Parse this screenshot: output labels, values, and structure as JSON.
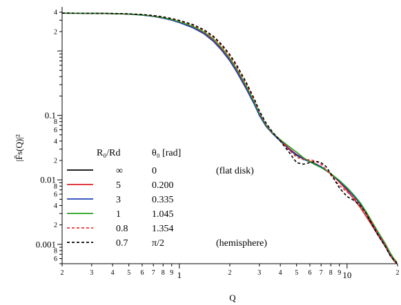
{
  "chart_data": {
    "type": "line",
    "xlabel": "Q",
    "ylabel": "|F̃s(Q)|²",
    "xscale": "log",
    "yscale": "log",
    "xlim": [
      0.2,
      20
    ],
    "ylim": [
      0.0005,
      4.6
    ],
    "grid": false,
    "legend_position": "bottom-left",
    "legend_headers": {
      "ratio": "R₀/Rd",
      "theta": "θ₀ [rad]"
    },
    "x_major_tick_labels": [
      {
        "value": 1,
        "label": "1"
      },
      {
        "value": 10,
        "label": "10"
      }
    ],
    "x_minor_tick_labels": [
      {
        "value": 0.2,
        "label": "2"
      },
      {
        "value": 0.3,
        "label": "3"
      },
      {
        "value": 0.4,
        "label": "4"
      },
      {
        "value": 0.5,
        "label": "5"
      },
      {
        "value": 0.6,
        "label": "6"
      },
      {
        "value": 0.7,
        "label": "7"
      },
      {
        "value": 0.8,
        "label": "8"
      },
      {
        "value": 0.9,
        "label": "9"
      },
      {
        "value": 2,
        "label": "2"
      },
      {
        "value": 3,
        "label": "3"
      },
      {
        "value": 4,
        "label": "4"
      },
      {
        "value": 5,
        "label": "5"
      },
      {
        "value": 6,
        "label": "6"
      },
      {
        "value": 7,
        "label": "7"
      },
      {
        "value": 8,
        "label": "8"
      },
      {
        "value": 9,
        "label": "9"
      },
      {
        "value": 20,
        "label": "2"
      }
    ],
    "y_major_tick_labels": [
      {
        "value": 0.1,
        "label": "0.1"
      },
      {
        "value": 0.01,
        "label": "0.01"
      },
      {
        "value": 0.001,
        "label": "0.001"
      }
    ],
    "y_minor_tick_labels": [
      {
        "value": 4,
        "label": "4"
      },
      {
        "value": 2,
        "label": "2"
      },
      {
        "value": 0.08,
        "label": "8"
      },
      {
        "value": 0.06,
        "label": "6"
      },
      {
        "value": 0.04,
        "label": "4"
      },
      {
        "value": 0.02,
        "label": "2"
      },
      {
        "value": 0.008,
        "label": "8"
      },
      {
        "value": 0.006,
        "label": "6"
      },
      {
        "value": 0.004,
        "label": "4"
      },
      {
        "value": 0.002,
        "label": "2"
      },
      {
        "value": 0.0008,
        "label": "8"
      },
      {
        "value": 0.0006,
        "label": "6"
      }
    ],
    "series": [
      {
        "ratio_label": "∞",
        "theta_label": "0",
        "note": "(flat disk)",
        "color": "#000000",
        "dash": "solid",
        "points": [
          [
            0.2,
            3.85
          ],
          [
            0.3,
            3.83
          ],
          [
            0.4,
            3.8
          ],
          [
            0.5,
            3.74
          ],
          [
            0.6,
            3.62
          ],
          [
            0.7,
            3.45
          ],
          [
            0.8,
            3.25
          ],
          [
            0.9,
            3.03
          ],
          [
            1.0,
            2.8
          ],
          [
            1.2,
            2.35
          ],
          [
            1.4,
            1.9
          ],
          [
            1.6,
            1.45
          ],
          [
            1.8,
            1.05
          ],
          [
            2.0,
            0.72
          ],
          [
            2.2,
            0.48
          ],
          [
            2.5,
            0.27
          ],
          [
            2.8,
            0.15
          ],
          [
            3.0,
            0.1
          ],
          [
            3.3,
            0.067
          ],
          [
            3.6,
            0.052
          ],
          [
            4.0,
            0.04
          ],
          [
            4.5,
            0.03
          ],
          [
            5.0,
            0.024
          ],
          [
            5.5,
            0.021
          ],
          [
            6.0,
            0.019
          ],
          [
            6.5,
            0.0175
          ],
          [
            7.0,
            0.016
          ],
          [
            8.0,
            0.0125
          ],
          [
            9.0,
            0.0095
          ],
          [
            10.0,
            0.0072
          ],
          [
            11.0,
            0.0055
          ],
          [
            12.0,
            0.0042
          ],
          [
            13.0,
            0.003
          ],
          [
            14.0,
            0.0021
          ],
          [
            15.0,
            0.0016
          ],
          [
            17.0,
            0.00095
          ],
          [
            18.0,
            0.0007
          ],
          [
            19.0,
            0.00058
          ],
          [
            19.8,
            0.00052
          ]
        ]
      },
      {
        "ratio_label": "5",
        "theta_label": "0.200",
        "note": "",
        "color": "#e02020",
        "dash": "solid",
        "points": [
          [
            0.2,
            3.85
          ],
          [
            0.3,
            3.83
          ],
          [
            0.4,
            3.8
          ],
          [
            0.5,
            3.74
          ],
          [
            0.6,
            3.62
          ],
          [
            0.7,
            3.45
          ],
          [
            0.8,
            3.25
          ],
          [
            0.9,
            3.03
          ],
          [
            1.0,
            2.8
          ],
          [
            1.2,
            2.34
          ],
          [
            1.4,
            1.9
          ],
          [
            1.6,
            1.45
          ],
          [
            1.8,
            1.05
          ],
          [
            2.0,
            0.73
          ],
          [
            2.2,
            0.49
          ],
          [
            2.5,
            0.275
          ],
          [
            2.8,
            0.155
          ],
          [
            3.0,
            0.105
          ],
          [
            3.3,
            0.069
          ],
          [
            3.6,
            0.053
          ],
          [
            4.0,
            0.041
          ],
          [
            4.5,
            0.031
          ],
          [
            5.0,
            0.025
          ],
          [
            5.5,
            0.0215
          ],
          [
            6.0,
            0.0195
          ],
          [
            6.5,
            0.0178
          ],
          [
            7.0,
            0.016
          ],
          [
            8.0,
            0.0124
          ],
          [
            9.0,
            0.0092
          ],
          [
            10.0,
            0.0068
          ],
          [
            11.0,
            0.005
          ],
          [
            12.0,
            0.0037
          ],
          [
            13.0,
            0.0027
          ],
          [
            14.0,
            0.002
          ],
          [
            15.0,
            0.0015
          ],
          [
            17.0,
            0.0009
          ],
          [
            18.0,
            0.00068
          ],
          [
            19.0,
            0.00056
          ],
          [
            19.8,
            0.0005
          ]
        ]
      },
      {
        "ratio_label": "3",
        "theta_label": "0.335",
        "note": "",
        "color": "#1f3fb0",
        "dash": "solid",
        "points": [
          [
            0.2,
            3.85
          ],
          [
            0.3,
            3.83
          ],
          [
            0.4,
            3.8
          ],
          [
            0.5,
            3.73
          ],
          [
            0.6,
            3.6
          ],
          [
            0.7,
            3.43
          ],
          [
            0.8,
            3.22
          ],
          [
            0.9,
            3.0
          ],
          [
            1.0,
            2.76
          ],
          [
            1.2,
            2.3
          ],
          [
            1.4,
            1.85
          ],
          [
            1.6,
            1.4
          ],
          [
            1.8,
            1.0
          ],
          [
            2.0,
            0.7
          ],
          [
            2.2,
            0.47
          ],
          [
            2.5,
            0.26
          ],
          [
            2.8,
            0.148
          ],
          [
            3.0,
            0.1
          ],
          [
            3.3,
            0.067
          ],
          [
            3.6,
            0.052
          ],
          [
            4.0,
            0.04
          ],
          [
            4.5,
            0.03
          ],
          [
            5.0,
            0.0245
          ],
          [
            5.5,
            0.021
          ],
          [
            6.0,
            0.019
          ],
          [
            6.5,
            0.0175
          ],
          [
            7.0,
            0.016
          ],
          [
            8.0,
            0.0125
          ],
          [
            9.0,
            0.0095
          ],
          [
            10.0,
            0.0072
          ],
          [
            11.0,
            0.0055
          ],
          [
            12.0,
            0.0042
          ],
          [
            13.0,
            0.003
          ],
          [
            14.0,
            0.0022
          ],
          [
            15.0,
            0.0016
          ],
          [
            17.0,
            0.00095
          ],
          [
            18.0,
            0.0007
          ],
          [
            19.0,
            0.00058
          ],
          [
            19.8,
            0.00052
          ]
        ]
      },
      {
        "ratio_label": "1",
        "theta_label": "1.045",
        "note": "",
        "color": "#20a020",
        "dash": "solid",
        "points": [
          [
            0.2,
            3.85
          ],
          [
            0.3,
            3.83
          ],
          [
            0.4,
            3.8
          ],
          [
            0.5,
            3.74
          ],
          [
            0.6,
            3.63
          ],
          [
            0.7,
            3.47
          ],
          [
            0.8,
            3.28
          ],
          [
            0.9,
            3.07
          ],
          [
            1.0,
            2.85
          ],
          [
            1.2,
            2.42
          ],
          [
            1.4,
            1.98
          ],
          [
            1.6,
            1.52
          ],
          [
            1.8,
            1.1
          ],
          [
            2.0,
            0.77
          ],
          [
            2.2,
            0.52
          ],
          [
            2.5,
            0.29
          ],
          [
            2.8,
            0.16
          ],
          [
            3.0,
            0.108
          ],
          [
            3.3,
            0.07
          ],
          [
            3.6,
            0.053
          ],
          [
            4.0,
            0.042
          ],
          [
            4.5,
            0.033
          ],
          [
            5.0,
            0.027
          ],
          [
            5.5,
            0.022
          ],
          [
            6.0,
            0.019
          ],
          [
            6.5,
            0.017
          ],
          [
            7.0,
            0.0155
          ],
          [
            8.0,
            0.0125
          ],
          [
            9.0,
            0.0098
          ],
          [
            10.0,
            0.0076
          ],
          [
            11.0,
            0.0058
          ],
          [
            12.0,
            0.0044
          ],
          [
            13.0,
            0.0032
          ],
          [
            14.0,
            0.0023
          ],
          [
            15.0,
            0.0017
          ],
          [
            17.0,
            0.001
          ],
          [
            18.0,
            0.00075
          ],
          [
            19.0,
            0.0006
          ],
          [
            19.8,
            0.00053
          ]
        ]
      },
      {
        "ratio_label": "0.8",
        "theta_label": "1.354",
        "note": "",
        "color": "#e83030",
        "dash": "dashed",
        "points": [
          [
            0.2,
            3.85
          ],
          [
            0.3,
            3.84
          ],
          [
            0.4,
            3.81
          ],
          [
            0.5,
            3.76
          ],
          [
            0.6,
            3.66
          ],
          [
            0.7,
            3.52
          ],
          [
            0.8,
            3.35
          ],
          [
            0.9,
            3.15
          ],
          [
            1.0,
            2.93
          ],
          [
            1.2,
            2.52
          ],
          [
            1.4,
            2.08
          ],
          [
            1.6,
            1.62
          ],
          [
            1.8,
            1.18
          ],
          [
            2.0,
            0.83
          ],
          [
            2.2,
            0.56
          ],
          [
            2.5,
            0.31
          ],
          [
            2.8,
            0.17
          ],
          [
            3.0,
            0.112
          ],
          [
            3.3,
            0.072
          ],
          [
            3.6,
            0.054
          ],
          [
            4.0,
            0.041
          ],
          [
            4.5,
            0.029
          ],
          [
            5.0,
            0.0225
          ],
          [
            5.5,
            0.0205
          ],
          [
            6.0,
            0.0205
          ],
          [
            6.5,
            0.0195
          ],
          [
            7.0,
            0.0175
          ],
          [
            8.0,
            0.0118
          ],
          [
            9.0,
            0.0082
          ],
          [
            10.0,
            0.0065
          ],
          [
            11.0,
            0.0052
          ],
          [
            12.0,
            0.004
          ],
          [
            13.0,
            0.003
          ],
          [
            14.0,
            0.0022
          ],
          [
            15.0,
            0.0016
          ],
          [
            17.0,
            0.00095
          ],
          [
            18.0,
            0.0007
          ],
          [
            19.0,
            0.00058
          ],
          [
            19.8,
            0.00052
          ]
        ]
      },
      {
        "ratio_label": "0.7",
        "theta_label": "π/2",
        "note": "(hemisphere)",
        "color": "#000000",
        "dash": "dashed",
        "points": [
          [
            0.2,
            3.85
          ],
          [
            0.3,
            3.84
          ],
          [
            0.4,
            3.82
          ],
          [
            0.5,
            3.77
          ],
          [
            0.6,
            3.68
          ],
          [
            0.7,
            3.55
          ],
          [
            0.8,
            3.38
          ],
          [
            0.9,
            3.19
          ],
          [
            1.0,
            2.98
          ],
          [
            1.2,
            2.58
          ],
          [
            1.4,
            2.14
          ],
          [
            1.6,
            1.68
          ],
          [
            1.8,
            1.24
          ],
          [
            2.0,
            0.88
          ],
          [
            2.2,
            0.6
          ],
          [
            2.5,
            0.33
          ],
          [
            2.8,
            0.18
          ],
          [
            3.0,
            0.118
          ],
          [
            3.3,
            0.075
          ],
          [
            3.6,
            0.055
          ],
          [
            4.0,
            0.04
          ],
          [
            4.5,
            0.027
          ],
          [
            5.0,
            0.0185
          ],
          [
            5.5,
            0.0175
          ],
          [
            6.0,
            0.0185
          ],
          [
            6.5,
            0.0195
          ],
          [
            7.0,
            0.0185
          ],
          [
            7.5,
            0.016
          ],
          [
            8.0,
            0.0125
          ],
          [
            9.0,
            0.0075
          ],
          [
            10.0,
            0.0055
          ],
          [
            11.0,
            0.0048
          ],
          [
            12.0,
            0.004
          ],
          [
            13.0,
            0.003
          ],
          [
            14.0,
            0.0021
          ],
          [
            15.0,
            0.0015
          ],
          [
            17.0,
            0.0009
          ],
          [
            18.0,
            0.00068
          ],
          [
            19.0,
            0.00057
          ],
          [
            19.8,
            0.00051
          ]
        ]
      }
    ]
  }
}
